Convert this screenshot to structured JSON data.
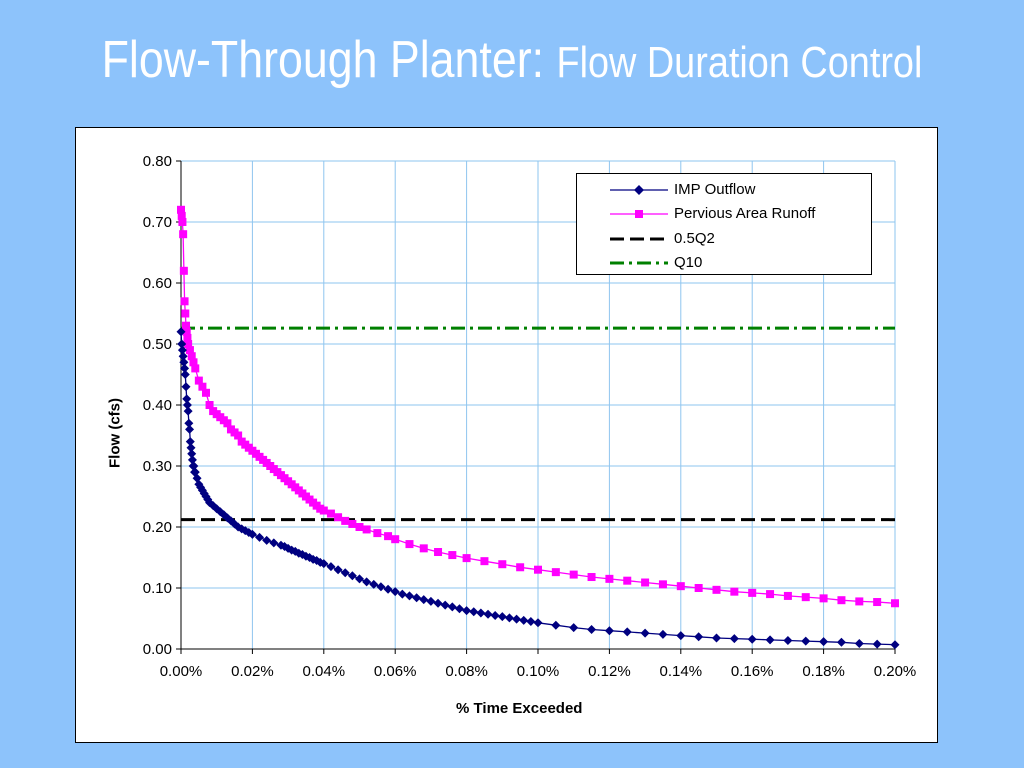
{
  "slide": {
    "title_main": "Flow-Through Planter: ",
    "title_sub": "Flow Duration Control"
  },
  "colors": {
    "background": "#8dc3fb",
    "grid": "#8ec5ef",
    "imp": "#000080",
    "pervious": "#ff00ff",
    "q2": "#000000",
    "q10": "#008000"
  },
  "chart_data": {
    "type": "line",
    "xlabel": "% Time Exceeded",
    "ylabel": "Flow (cfs)",
    "xlim": [
      0,
      0.2
    ],
    "ylim": [
      0,
      0.8
    ],
    "x_ticks": [
      "0.00%",
      "0.02%",
      "0.04%",
      "0.06%",
      "0.08%",
      "0.10%",
      "0.12%",
      "0.14%",
      "0.16%",
      "0.18%",
      "0.20%"
    ],
    "y_ticks": [
      "0.00",
      "0.10",
      "0.20",
      "0.30",
      "0.40",
      "0.50",
      "0.60",
      "0.70",
      "0.80"
    ],
    "grid": true,
    "legend_position": "top-right",
    "series": [
      {
        "name": "IMP Outflow",
        "marker": "diamond",
        "x": [
          0.0,
          0.0002,
          0.0004,
          0.0006,
          0.0008,
          0.001,
          0.0012,
          0.0014,
          0.0016,
          0.0018,
          0.002,
          0.0022,
          0.0024,
          0.0026,
          0.0028,
          0.003,
          0.0032,
          0.0034,
          0.0036,
          0.0038,
          0.004,
          0.0045,
          0.005,
          0.0055,
          0.006,
          0.0065,
          0.007,
          0.0075,
          0.008,
          0.009,
          0.01,
          0.011,
          0.012,
          0.013,
          0.014,
          0.015,
          0.016,
          0.017,
          0.018,
          0.019,
          0.02,
          0.022,
          0.024,
          0.026,
          0.028,
          0.029,
          0.03,
          0.031,
          0.032,
          0.033,
          0.034,
          0.035,
          0.036,
          0.037,
          0.038,
          0.039,
          0.04,
          0.042,
          0.044,
          0.046,
          0.048,
          0.05,
          0.052,
          0.054,
          0.056,
          0.058,
          0.06,
          0.062,
          0.064,
          0.066,
          0.068,
          0.07,
          0.072,
          0.074,
          0.076,
          0.078,
          0.08,
          0.082,
          0.084,
          0.086,
          0.088,
          0.09,
          0.092,
          0.094,
          0.096,
          0.098,
          0.1,
          0.105,
          0.11,
          0.115,
          0.12,
          0.125,
          0.13,
          0.135,
          0.14,
          0.145,
          0.15,
          0.155,
          0.16,
          0.165,
          0.17,
          0.175,
          0.18,
          0.185,
          0.19,
          0.195,
          0.2
        ],
        "y": [
          0.52,
          0.5,
          0.49,
          0.48,
          0.47,
          0.46,
          0.45,
          0.43,
          0.41,
          0.4,
          0.39,
          0.37,
          0.36,
          0.34,
          0.33,
          0.32,
          0.31,
          0.3,
          0.3,
          0.29,
          0.29,
          0.28,
          0.27,
          0.265,
          0.26,
          0.255,
          0.25,
          0.245,
          0.24,
          0.235,
          0.23,
          0.225,
          0.22,
          0.215,
          0.21,
          0.205,
          0.2,
          0.197,
          0.194,
          0.191,
          0.188,
          0.183,
          0.178,
          0.174,
          0.17,
          0.168,
          0.165,
          0.162,
          0.16,
          0.157,
          0.155,
          0.152,
          0.15,
          0.147,
          0.145,
          0.142,
          0.14,
          0.135,
          0.13,
          0.125,
          0.12,
          0.115,
          0.11,
          0.106,
          0.102,
          0.098,
          0.094,
          0.09,
          0.087,
          0.084,
          0.081,
          0.078,
          0.075,
          0.072,
          0.069,
          0.066,
          0.063,
          0.061,
          0.059,
          0.057,
          0.055,
          0.053,
          0.051,
          0.049,
          0.047,
          0.045,
          0.043,
          0.039,
          0.035,
          0.032,
          0.03,
          0.028,
          0.026,
          0.024,
          0.022,
          0.02,
          0.018,
          0.017,
          0.016,
          0.015,
          0.014,
          0.013,
          0.012,
          0.011,
          0.009,
          0.008,
          0.007
        ]
      },
      {
        "name": "Pervious Area Runoff",
        "marker": "square",
        "x": [
          0.0,
          0.0002,
          0.0004,
          0.0006,
          0.0008,
          0.001,
          0.0012,
          0.0014,
          0.0016,
          0.0018,
          0.002,
          0.0025,
          0.003,
          0.0035,
          0.004,
          0.005,
          0.006,
          0.007,
          0.008,
          0.009,
          0.01,
          0.011,
          0.012,
          0.013,
          0.014,
          0.015,
          0.016,
          0.017,
          0.018,
          0.019,
          0.02,
          0.021,
          0.022,
          0.023,
          0.024,
          0.025,
          0.026,
          0.027,
          0.028,
          0.029,
          0.03,
          0.031,
          0.032,
          0.033,
          0.034,
          0.035,
          0.036,
          0.037,
          0.038,
          0.039,
          0.04,
          0.042,
          0.044,
          0.046,
          0.048,
          0.05,
          0.052,
          0.055,
          0.058,
          0.06,
          0.064,
          0.068,
          0.072,
          0.076,
          0.08,
          0.085,
          0.09,
          0.095,
          0.1,
          0.105,
          0.11,
          0.115,
          0.12,
          0.125,
          0.13,
          0.135,
          0.14,
          0.145,
          0.15,
          0.155,
          0.16,
          0.165,
          0.17,
          0.175,
          0.18,
          0.185,
          0.19,
          0.195,
          0.2
        ],
        "y": [
          0.72,
          0.71,
          0.7,
          0.68,
          0.62,
          0.57,
          0.55,
          0.53,
          0.52,
          0.51,
          0.5,
          0.49,
          0.48,
          0.47,
          0.46,
          0.44,
          0.43,
          0.42,
          0.4,
          0.39,
          0.385,
          0.38,
          0.375,
          0.37,
          0.36,
          0.355,
          0.35,
          0.34,
          0.335,
          0.33,
          0.325,
          0.32,
          0.315,
          0.31,
          0.305,
          0.3,
          0.295,
          0.29,
          0.285,
          0.28,
          0.275,
          0.27,
          0.265,
          0.26,
          0.255,
          0.25,
          0.245,
          0.24,
          0.235,
          0.23,
          0.227,
          0.222,
          0.216,
          0.21,
          0.205,
          0.2,
          0.196,
          0.19,
          0.185,
          0.18,
          0.172,
          0.165,
          0.159,
          0.154,
          0.149,
          0.144,
          0.139,
          0.134,
          0.13,
          0.126,
          0.122,
          0.118,
          0.115,
          0.112,
          0.109,
          0.106,
          0.103,
          0.1,
          0.097,
          0.094,
          0.092,
          0.09,
          0.087,
          0.085,
          0.083,
          0.08,
          0.078,
          0.077,
          0.075
        ]
      },
      {
        "name": "0.5Q2",
        "style": "dashed",
        "value": 0.212
      },
      {
        "name": "Q10",
        "style": "dash-dot",
        "value": 0.526
      }
    ]
  }
}
